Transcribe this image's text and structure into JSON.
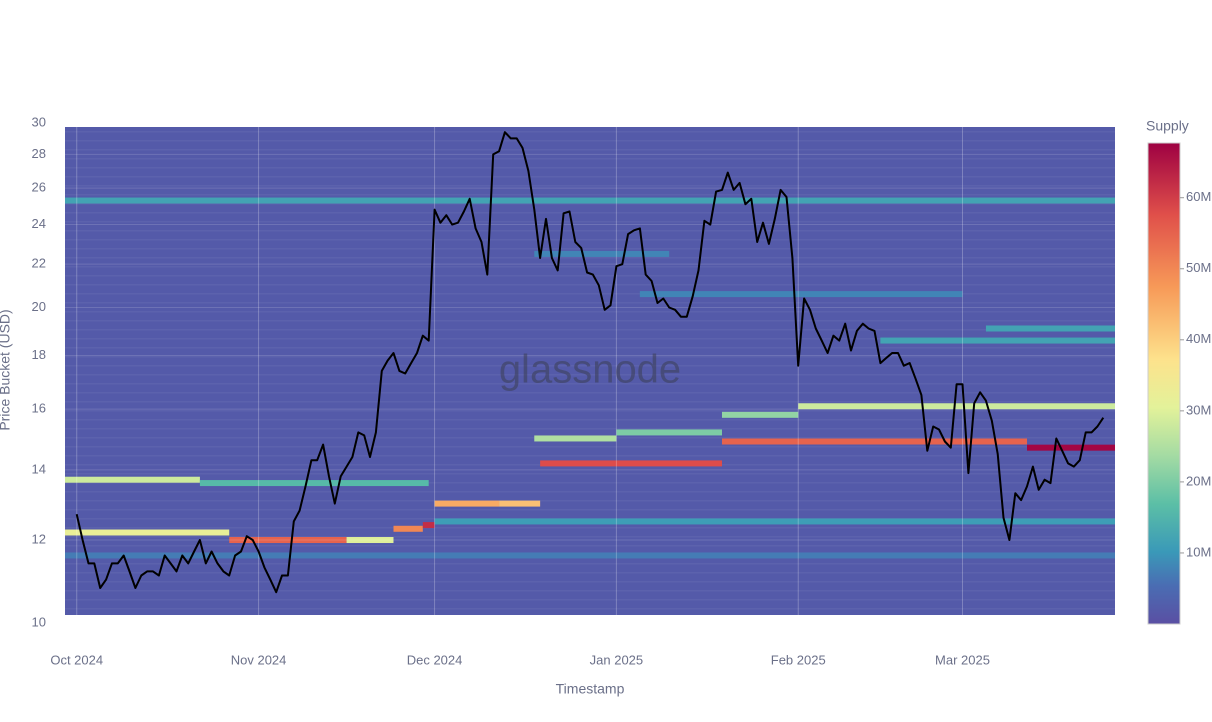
{
  "chart_data": {
    "type": "heatmap",
    "xlabel": "Timestamp",
    "ylabel": "Price Bucket (USD)",
    "watermark": "glassnode",
    "ylog": true,
    "ylim": [
      10,
      30
    ],
    "yticks": [
      10,
      12,
      14,
      16,
      18,
      20,
      22,
      24,
      26,
      28,
      30
    ],
    "xlim": [
      "2024-09-29",
      "2025-03-27"
    ],
    "xticks": [
      {
        "value": "2024-10-01",
        "label": "Oct 2024"
      },
      {
        "value": "2024-11-01",
        "label": "Nov 2024"
      },
      {
        "value": "2024-12-01",
        "label": "Dec 2024"
      },
      {
        "value": "2025-01-01",
        "label": "Jan 2025"
      },
      {
        "value": "2025-02-01",
        "label": "Feb 2025"
      },
      {
        "value": "2025-03-01",
        "label": "Mar 2025"
      }
    ],
    "grid": true,
    "background_supply": 2000000,
    "bands": [
      {
        "price": 25.3,
        "start": "2024-09-29",
        "end": "2025-03-27",
        "supply": 12000000
      },
      {
        "price": 13.7,
        "start": "2024-09-29",
        "end": "2024-10-22",
        "supply": 28000000
      },
      {
        "price": 13.6,
        "start": "2024-10-22",
        "end": "2024-11-30",
        "supply": 16000000
      },
      {
        "price": 12.2,
        "start": "2024-09-29",
        "end": "2024-10-27",
        "supply": 32000000
      },
      {
        "price": 12.0,
        "start": "2024-10-27",
        "end": "2024-11-16",
        "supply": 55000000
      },
      {
        "price": 12.0,
        "start": "2024-11-16",
        "end": "2024-11-24",
        "supply": 30000000
      },
      {
        "price": 12.3,
        "start": "2024-11-24",
        "end": "2024-11-29",
        "supply": 50000000
      },
      {
        "price": 12.4,
        "start": "2024-11-29",
        "end": "2024-12-01",
        "supply": 62000000
      },
      {
        "price": 13.0,
        "start": "2024-12-01",
        "end": "2024-12-12",
        "supply": 45000000
      },
      {
        "price": 13.0,
        "start": "2024-12-12",
        "end": "2024-12-19",
        "supply": 42000000
      },
      {
        "price": 12.5,
        "start": "2024-12-01",
        "end": "2025-03-27",
        "supply": 11000000
      },
      {
        "price": 11.6,
        "start": "2024-09-29",
        "end": "2025-03-27",
        "supply": 7000000
      },
      {
        "price": 14.2,
        "start": "2024-12-19",
        "end": "2025-01-19",
        "supply": 58000000
      },
      {
        "price": 15.0,
        "start": "2024-12-18",
        "end": "2025-01-01",
        "supply": 25000000
      },
      {
        "price": 15.2,
        "start": "2025-01-01",
        "end": "2025-01-19",
        "supply": 20000000
      },
      {
        "price": 14.9,
        "start": "2025-01-19",
        "end": "2025-03-12",
        "supply": 55000000
      },
      {
        "price": 15.8,
        "start": "2025-01-19",
        "end": "2025-02-01",
        "supply": 22000000
      },
      {
        "price": 16.1,
        "start": "2025-02-01",
        "end": "2025-03-27",
        "supply": 28000000
      },
      {
        "price": 14.7,
        "start": "2025-03-12",
        "end": "2025-03-27",
        "supply": 67000000
      },
      {
        "price": 18.6,
        "start": "2025-02-15",
        "end": "2025-03-27",
        "supply": 12000000
      },
      {
        "price": 19.1,
        "start": "2025-03-05",
        "end": "2025-03-27",
        "supply": 12000000
      },
      {
        "price": 22.5,
        "start": "2024-12-18",
        "end": "2025-01-10",
        "supply": 8000000
      },
      {
        "price": 20.6,
        "start": "2025-01-05",
        "end": "2025-03-01",
        "supply": 8000000
      }
    ],
    "colorbar": {
      "title": "Supply",
      "zlim": [
        0,
        67700000
      ],
      "ticks": [
        {
          "value": 10000000,
          "label": "10M"
        },
        {
          "value": 20000000,
          "label": "20M"
        },
        {
          "value": 30000000,
          "label": "30M"
        },
        {
          "value": 40000000,
          "label": "40M"
        },
        {
          "value": 50000000,
          "label": "50M"
        },
        {
          "value": 60000000,
          "label": "60M"
        }
      ],
      "colorscale": [
        [
          0,
          "#5a4fa3"
        ],
        [
          0.08,
          "#4a6db3"
        ],
        [
          0.15,
          "#3a99b8"
        ],
        [
          0.25,
          "#5cbfa6"
        ],
        [
          0.35,
          "#a4dba3"
        ],
        [
          0.45,
          "#e3f29a"
        ],
        [
          0.55,
          "#fde28c"
        ],
        [
          0.7,
          "#f79a58"
        ],
        [
          0.85,
          "#e0504a"
        ],
        [
          1,
          "#9e0142"
        ]
      ]
    },
    "line": {
      "color": "#000000",
      "x": [
        "2024-10-01",
        "2024-10-02",
        "2024-10-03",
        "2024-10-04",
        "2024-10-05",
        "2024-10-06",
        "2024-10-07",
        "2024-10-08",
        "2024-10-09",
        "2024-10-10",
        "2024-10-11",
        "2024-10-12",
        "2024-10-13",
        "2024-10-14",
        "2024-10-15",
        "2024-10-16",
        "2024-10-17",
        "2024-10-18",
        "2024-10-19",
        "2024-10-20",
        "2024-10-21",
        "2024-10-22",
        "2024-10-23",
        "2024-10-24",
        "2024-10-25",
        "2024-10-26",
        "2024-10-27",
        "2024-10-28",
        "2024-10-29",
        "2024-10-30",
        "2024-10-31",
        "2024-11-01",
        "2024-11-02",
        "2024-11-03",
        "2024-11-04",
        "2024-11-05",
        "2024-11-06",
        "2024-11-07",
        "2024-11-08",
        "2024-11-09",
        "2024-11-10",
        "2024-11-11",
        "2024-11-12",
        "2024-11-13",
        "2024-11-14",
        "2024-11-15",
        "2024-11-16",
        "2024-11-17",
        "2024-11-18",
        "2024-11-19",
        "2024-11-20",
        "2024-11-21",
        "2024-11-22",
        "2024-11-23",
        "2024-11-24",
        "2024-11-25",
        "2024-11-26",
        "2024-11-27",
        "2024-11-28",
        "2024-11-29",
        "2024-11-30",
        "2024-12-01",
        "2024-12-02",
        "2024-12-03",
        "2024-12-04",
        "2024-12-05",
        "2024-12-06",
        "2024-12-07",
        "2024-12-08",
        "2024-12-09",
        "2024-12-10",
        "2024-12-11",
        "2024-12-12",
        "2024-12-13",
        "2024-12-14",
        "2024-12-15",
        "2024-12-16",
        "2024-12-17",
        "2024-12-18",
        "2024-12-19",
        "2024-12-20",
        "2024-12-21",
        "2024-12-22",
        "2024-12-23",
        "2024-12-24",
        "2024-12-25",
        "2024-12-26",
        "2024-12-27",
        "2024-12-28",
        "2024-12-29",
        "2024-12-30",
        "2024-12-31",
        "2025-01-01",
        "2025-01-02",
        "2025-01-03",
        "2025-01-04",
        "2025-01-05",
        "2025-01-06",
        "2025-01-07",
        "2025-01-08",
        "2025-01-09",
        "2025-01-10",
        "2025-01-11",
        "2025-01-12",
        "2025-01-13",
        "2025-01-14",
        "2025-01-15",
        "2025-01-16",
        "2025-01-17",
        "2025-01-18",
        "2025-01-19",
        "2025-01-20",
        "2025-01-21",
        "2025-01-22",
        "2025-01-23",
        "2025-01-24",
        "2025-01-25",
        "2025-01-26",
        "2025-01-27",
        "2025-01-28",
        "2025-01-29",
        "2025-01-30",
        "2025-01-31",
        "2025-02-01",
        "2025-02-02",
        "2025-02-03",
        "2025-02-04",
        "2025-02-05",
        "2025-02-06",
        "2025-02-07",
        "2025-02-08",
        "2025-02-09",
        "2025-02-10",
        "2025-02-11",
        "2025-02-12",
        "2025-02-13",
        "2025-02-14",
        "2025-02-15",
        "2025-02-16",
        "2025-02-17",
        "2025-02-18",
        "2025-02-19",
        "2025-02-20",
        "2025-02-21",
        "2025-02-22",
        "2025-02-23",
        "2025-02-24",
        "2025-02-25",
        "2025-02-26",
        "2025-02-27",
        "2025-02-28",
        "2025-03-01",
        "2025-03-02",
        "2025-03-03",
        "2025-03-04",
        "2025-03-05",
        "2025-03-06",
        "2025-03-07",
        "2025-03-08",
        "2025-03-09",
        "2025-03-10",
        "2025-03-11",
        "2025-03-12",
        "2025-03-13",
        "2025-03-14",
        "2025-03-15",
        "2025-03-16",
        "2025-03-17",
        "2025-03-18",
        "2025-03-19",
        "2025-03-20",
        "2025-03-21",
        "2025-03-22",
        "2025-03-23",
        "2025-03-24",
        "2025-03-25"
      ],
      "values": [
        12.7,
        12.0,
        11.4,
        11.4,
        10.8,
        11.0,
        11.4,
        11.4,
        11.6,
        11.2,
        10.8,
        11.1,
        11.2,
        11.2,
        11.1,
        11.6,
        11.4,
        11.2,
        11.6,
        11.4,
        11.7,
        12.0,
        11.4,
        11.7,
        11.4,
        11.2,
        11.1,
        11.6,
        11.7,
        12.1,
        12.0,
        11.7,
        11.3,
        11.0,
        10.7,
        11.1,
        11.1,
        12.5,
        12.8,
        13.5,
        14.3,
        14.3,
        14.8,
        13.8,
        13.0,
        13.8,
        14.1,
        14.4,
        15.2,
        15.1,
        14.4,
        15.2,
        17.4,
        17.8,
        18.1,
        17.4,
        17.3,
        17.7,
        18.1,
        18.8,
        18.6,
        24.8,
        24.1,
        24.5,
        24.0,
        24.1,
        24.7,
        25.4,
        23.8,
        23.1,
        21.5,
        28.0,
        28.2,
        29.4,
        29.0,
        29.0,
        28.4,
        27.0,
        24.8,
        22.3,
        24.3,
        22.3,
        21.7,
        24.6,
        24.7,
        23.1,
        22.8,
        21.6,
        21.5,
        21.0,
        19.9,
        20.1,
        21.9,
        22.0,
        23.5,
        23.7,
        23.8,
        21.5,
        21.2,
        20.2,
        20.4,
        20.0,
        19.9,
        19.6,
        19.6,
        20.5,
        21.7,
        24.2,
        24.0,
        25.8,
        25.9,
        26.9,
        25.9,
        26.3,
        25.1,
        25.4,
        23.1,
        24.1,
        23.0,
        24.3,
        25.9,
        25.5,
        22.3,
        17.6,
        20.4,
        19.9,
        19.1,
        18.6,
        18.1,
        18.8,
        18.6,
        19.3,
        18.2,
        19.0,
        19.3,
        19.1,
        19.0,
        17.7,
        17.9,
        18.1,
        18.1,
        17.6,
        17.7,
        17.1,
        16.5,
        14.6,
        15.4,
        15.3,
        14.9,
        14.7,
        16.9,
        16.9,
        13.9,
        16.2,
        16.6,
        16.3,
        15.6,
        14.5,
        12.6,
        12.0,
        13.3,
        13.1,
        13.5,
        14.1,
        13.4,
        13.7,
        13.6,
        15.0,
        14.6,
        14.2,
        14.1,
        14.3,
        15.2,
        15.2,
        15.4,
        15.7
      ]
    }
  }
}
